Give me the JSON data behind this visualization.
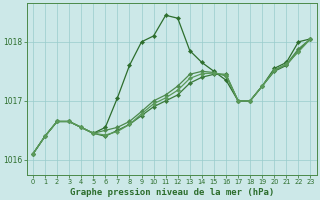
{
  "xlabel": "Graphe pression niveau de la mer (hPa)",
  "bg_color": "#cce8e8",
  "grid_color": "#99cccc",
  "hours": [
    0,
    1,
    2,
    3,
    4,
    5,
    6,
    7,
    8,
    9,
    10,
    11,
    12,
    13,
    14,
    15,
    16,
    17,
    18,
    19,
    20,
    21,
    22,
    23
  ],
  "series1": [
    1016.1,
    1016.4,
    1016.65,
    1016.65,
    1016.55,
    1016.45,
    1016.55,
    1017.05,
    1017.6,
    1018.0,
    1018.1,
    1018.45,
    1018.4,
    1017.85,
    1017.65,
    1017.5,
    1017.35,
    1017.0,
    1017.0,
    1017.25,
    1017.55,
    1017.65,
    1018.0,
    1018.05
  ],
  "series2": [
    1016.1,
    1016.4,
    1016.65,
    1016.65,
    1016.55,
    1016.45,
    1016.4,
    1016.5,
    1016.6,
    1016.75,
    1016.9,
    1017.0,
    1017.1,
    1017.3,
    1017.4,
    1017.45,
    1017.45,
    1017.0,
    1017.0,
    1017.25,
    1017.5,
    1017.6,
    1017.85,
    1018.05
  ],
  "series3": [
    1016.1,
    1016.4,
    1016.65,
    1016.65,
    1016.55,
    1016.45,
    1016.5,
    1016.55,
    1016.65,
    1016.82,
    1017.0,
    1017.1,
    1017.25,
    1017.45,
    1017.5,
    1017.48,
    1017.42,
    1017.0,
    1017.0,
    1017.25,
    1017.52,
    1017.62,
    1017.88,
    1018.05
  ],
  "series4": [
    1016.1,
    1016.4,
    1016.65,
    1016.65,
    1016.55,
    1016.45,
    1016.42,
    1016.48,
    1016.6,
    1016.78,
    1016.95,
    1017.05,
    1017.18,
    1017.38,
    1017.46,
    1017.47,
    1017.44,
    1017.0,
    1017.0,
    1017.25,
    1017.52,
    1017.62,
    1017.83,
    1018.05
  ],
  "ylim": [
    1015.75,
    1018.65
  ],
  "yticks": [
    1016,
    1017,
    1018
  ],
  "xlim": [
    -0.5,
    23.5
  ],
  "xticks": [
    0,
    1,
    2,
    3,
    4,
    5,
    6,
    7,
    8,
    9,
    10,
    11,
    12,
    13,
    14,
    15,
    16,
    17,
    18,
    19,
    20,
    21,
    22,
    23
  ],
  "marker": "D",
  "markersize": 2.2,
  "linewidth": 0.9,
  "xlabel_fontsize": 6.5,
  "xtick_fontsize": 4.8,
  "ytick_fontsize": 5.5,
  "colors": [
    "#2d6e2d",
    "#3a7a3a",
    "#4d8a4d",
    "#5a9a5a"
  ]
}
